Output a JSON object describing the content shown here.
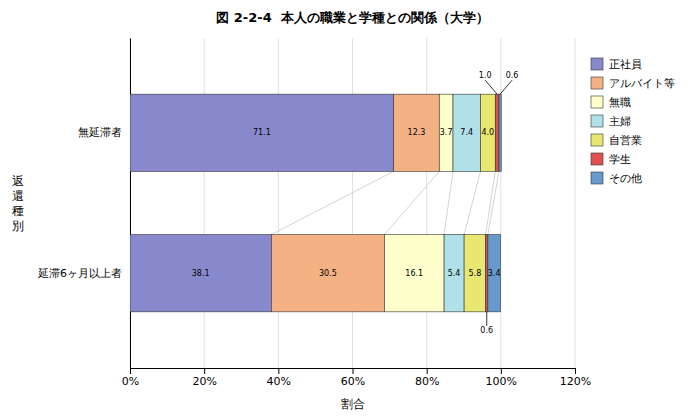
{
  "chart_data": {
    "type": "bar",
    "orientation": "horizontal",
    "stacked": true,
    "title": "図 2-2-4  本人の職業と学種との関係（大学）",
    "xlabel": "割合",
    "ylabel": "返\n還\n種\n別",
    "categories": [
      "無延滞者",
      "延滞6ヶ月以上者"
    ],
    "series": [
      {
        "name": "正社員",
        "color": "#8888cc",
        "values": [
          71.1,
          38.1
        ],
        "value_labels": [
          "71.1",
          "38.1"
        ]
      },
      {
        "name": "アルバイト等",
        "color": "#f4b183",
        "values": [
          12.3,
          30.5
        ],
        "value_labels": [
          "12.3",
          "30.5"
        ]
      },
      {
        "name": "無職",
        "color": "#ffffcc",
        "values": [
          3.7,
          16.1
        ],
        "value_labels": [
          "3.7",
          "16.1"
        ]
      },
      {
        "name": "主婦",
        "color": "#b0e0e8",
        "values": [
          7.4,
          5.4
        ],
        "value_labels": [
          "7.4",
          "5.4"
        ]
      },
      {
        "name": "自営業",
        "color": "#e8e870",
        "values": [
          4.0,
          5.8
        ],
        "value_labels": [
          "4.0",
          "5.8"
        ]
      },
      {
        "name": "学生",
        "color": "#e05050",
        "values": [
          1.0,
          0.6
        ],
        "value_labels": [
          "1.0",
          "0.6"
        ]
      },
      {
        "name": "その他",
        "color": "#6699cc",
        "values": [
          0.6,
          3.4
        ],
        "value_labels": [
          "0.6",
          "3.4"
        ]
      }
    ],
    "xlim": [
      0,
      120
    ],
    "xticks": [
      {
        "value": 0,
        "label": "0%"
      },
      {
        "value": 20,
        "label": "20%"
      },
      {
        "value": 40,
        "label": "40%"
      },
      {
        "value": 60,
        "label": "60%"
      },
      {
        "value": 80,
        "label": "80%"
      },
      {
        "value": 100,
        "label": "100%"
      },
      {
        "value": 120,
        "label": "120%"
      }
    ],
    "grid": true,
    "legend": "right",
    "data_labels": true
  }
}
